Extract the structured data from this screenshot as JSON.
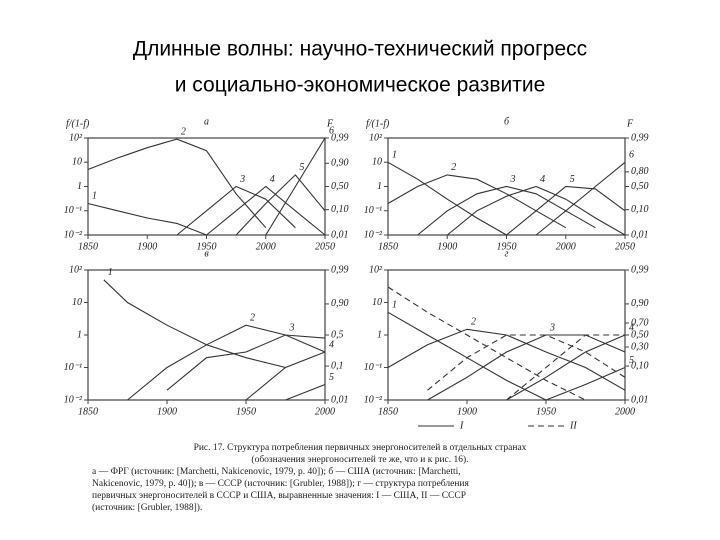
{
  "title_lines": [
    "Длинные волны: научно-технический прогресс",
    "и социально-экономическое развитие"
  ],
  "chart_data": [
    {
      "type": "line",
      "title": "а",
      "ylabel": "f/(1-f)",
      "y2label": "F",
      "log_y": true,
      "y2scale": "logit",
      "color": "#333333",
      "xlim": [
        1850,
        2050
      ],
      "xticks": [
        1850,
        1900,
        1950,
        2000,
        2050
      ],
      "ylim": [
        0.01,
        100
      ],
      "yticks": [
        {
          "value": 100,
          "label": "10²"
        },
        10,
        1,
        {
          "value": 0.1,
          "label": "10⁻¹"
        },
        {
          "value": 0.01,
          "label": "10⁻²"
        }
      ],
      "y2lim": [
        0.01,
        0.99
      ],
      "y2ticks": [
        {
          "value": 0.99,
          "label": "0,99"
        },
        {
          "value": 0.9,
          "label": "0,90"
        },
        {
          "value": 0.5,
          "label": "0,50"
        },
        {
          "value": 0.1,
          "label": "0,10"
        },
        {
          "value": 0.01,
          "label": "0,01"
        }
      ],
      "x": [
        1850,
        1875,
        1900,
        1925,
        1950,
        1975,
        2000,
        2025,
        2050
      ],
      "series": [
        {
          "name": "1",
          "values": [
            0.2,
            0.1,
            0.05,
            0.03,
            0.01,
            null,
            null,
            null,
            null
          ]
        },
        {
          "name": "2",
          "values": [
            5,
            15,
            40,
            90,
            30,
            0.5,
            0.02,
            null,
            null
          ]
        },
        {
          "name": "3",
          "values": [
            null,
            null,
            null,
            0.01,
            0.1,
            1,
            0.3,
            0.02,
            null
          ]
        },
        {
          "name": "4",
          "values": [
            null,
            null,
            null,
            null,
            0.01,
            0.1,
            1,
            0.1,
            0.01
          ]
        },
        {
          "name": "5",
          "values": [
            null,
            null,
            null,
            null,
            null,
            0.01,
            0.2,
            3,
            0.1
          ]
        },
        {
          "name": "6",
          "values": [
            null,
            null,
            null,
            null,
            null,
            null,
            0.01,
            1,
            100
          ]
        }
      ]
    },
    {
      "type": "line",
      "title": "б",
      "ylabel": "f/(1-f)",
      "y2label": "F",
      "log_y": true,
      "y2scale": "logit",
      "color": "#333333",
      "xlim": [
        1850,
        2050
      ],
      "xticks": [
        1850,
        1900,
        1950,
        2000,
        2050
      ],
      "ylim": [
        0.01,
        100
      ],
      "yticks": [
        {
          "value": 100,
          "label": "10²"
        },
        10,
        1,
        {
          "value": 0.1,
          "label": "10⁻¹"
        },
        {
          "value": 0.01,
          "label": "10⁻²"
        }
      ],
      "y2lim": [
        0.01,
        0.99
      ],
      "y2ticks": [
        {
          "value": 0.99,
          "label": "0,99"
        },
        {
          "value": 0.8,
          "label": "0,80"
        },
        {
          "value": 0.5,
          "label": "0,50"
        },
        {
          "value": 0.1,
          "label": "0,10"
        },
        {
          "value": 0.01,
          "label": "0,01"
        }
      ],
      "x": [
        1850,
        1875,
        1900,
        1925,
        1950,
        1975,
        2000,
        2025,
        2050
      ],
      "series": [
        {
          "name": "1",
          "values": [
            10,
            2,
            0.3,
            0.05,
            0.01,
            null,
            null,
            null,
            null
          ]
        },
        {
          "name": "2",
          "values": [
            0.2,
            1,
            3,
            2,
            0.5,
            0.1,
            0.02,
            null,
            null
          ]
        },
        {
          "name": "3",
          "values": [
            null,
            0.01,
            0.1,
            0.5,
            1,
            0.5,
            0.1,
            0.02,
            null
          ]
        },
        {
          "name": "4",
          "values": [
            null,
            null,
            0.01,
            0.1,
            0.4,
            1,
            0.3,
            0.05,
            0.01
          ]
        },
        {
          "name": "5",
          "values": [
            null,
            null,
            null,
            null,
            0.01,
            0.1,
            1,
            0.8,
            0.1
          ]
        },
        {
          "name": "6",
          "values": [
            null,
            null,
            null,
            null,
            null,
            0.01,
            0.1,
            1,
            10
          ]
        }
      ]
    },
    {
      "type": "line",
      "title": "в",
      "log_y": true,
      "y2scale": "logit",
      "color": "#333333",
      "xlim": [
        1850,
        2000
      ],
      "xticks": [
        1850,
        1900,
        1950,
        2000
      ],
      "ylim": [
        0.01,
        100
      ],
      "yticks": [
        {
          "value": 100,
          "label": "10²"
        },
        10,
        1,
        {
          "value": 0.1,
          "label": "10⁻¹"
        },
        {
          "value": 0.01,
          "label": "10⁻²"
        }
      ],
      "y2lim": [
        0.01,
        0.99
      ],
      "y2ticks": [
        {
          "value": 0.99,
          "label": "0,99"
        },
        {
          "value": 0.9,
          "label": "0,90"
        },
        {
          "value": 0.5,
          "label": "0,5"
        },
        {
          "value": 0.1,
          "label": "0,1"
        },
        {
          "value": 0.01,
          "label": "0,01"
        }
      ],
      "x": [
        1860,
        1875,
        1900,
        1925,
        1950,
        1975,
        2000
      ],
      "series": [
        {
          "name": "1",
          "values": [
            50,
            10,
            2,
            0.5,
            0.2,
            0.1,
            null
          ]
        },
        {
          "name": "2",
          "values": [
            null,
            0.01,
            0.1,
            0.5,
            2,
            1,
            0.3
          ]
        },
        {
          "name": "3",
          "values": [
            null,
            null,
            0.02,
            0.2,
            0.3,
            1,
            0.8
          ]
        },
        {
          "name": "4",
          "values": [
            null,
            null,
            null,
            null,
            0.01,
            0.1,
            0.3
          ]
        },
        {
          "name": "5",
          "values": [
            null,
            null,
            null,
            null,
            null,
            0.01,
            0.03
          ]
        }
      ]
    },
    {
      "type": "line",
      "title": "г",
      "log_y": true,
      "y2scale": "logit",
      "color": "#333333",
      "xlim": [
        1850,
        2000
      ],
      "xticks": [
        1850,
        1900,
        1950,
        2000
      ],
      "ylim": [
        0.01,
        100
      ],
      "yticks": [
        {
          "value": 100,
          "label": "10²"
        },
        10,
        1,
        {
          "value": 0.1,
          "label": "10⁻¹"
        },
        {
          "value": 0.01,
          "label": "10⁻²"
        }
      ],
      "y2lim": [
        0.01,
        0.99
      ],
      "y2ticks": [
        {
          "value": 0.99,
          "label": "0,99"
        },
        {
          "value": 0.9,
          "label": "0,90"
        },
        {
          "value": 0.7,
          "label": "0,70"
        },
        {
          "value": 0.5,
          "label": "0,50"
        },
        {
          "value": 0.3,
          "label": "0,30"
        },
        {
          "value": 0.1,
          "label": "0,10"
        },
        {
          "value": 0.01,
          "label": "0,01"
        }
      ],
      "x": [
        1850,
        1875,
        1900,
        1925,
        1950,
        1975,
        2000
      ],
      "series": [
        {
          "name": "1",
          "values": [
            5,
            1,
            0.2,
            0.04,
            0.01,
            null,
            null
          ]
        },
        {
          "name": "2",
          "values": [
            0.1,
            0.5,
            1.5,
            1,
            0.3,
            0.1,
            0.02
          ]
        },
        {
          "name": "3",
          "values": [
            null,
            0.01,
            0.05,
            0.3,
            1,
            1,
            0.3
          ]
        },
        {
          "name": "4",
          "values": [
            null,
            null,
            null,
            0.01,
            0.05,
            0.3,
            1
          ]
        },
        {
          "name": "5",
          "values": [
            null,
            null,
            null,
            null,
            0.01,
            0.03,
            0.1
          ]
        },
        {
          "dash": true,
          "values": [
            30,
            5,
            1,
            0.2,
            0.04,
            0.01,
            null
          ]
        },
        {
          "dash": true,
          "values": [
            null,
            0.02,
            0.2,
            1,
            1,
            0.3,
            0.05
          ]
        },
        {
          "dash": true,
          "values": [
            null,
            null,
            null,
            0.01,
            0.1,
            1,
            1
          ]
        }
      ],
      "legend": [
        {
          "label": "I",
          "dash": false
        },
        {
          "label": "II",
          "dash": true
        }
      ]
    }
  ],
  "caption_lines": [
    "Рис. 17. Структура потребления первичных энергоносителей в отдельных странах",
    "(обозначения энергоносителей те же, что и к рис. 16).",
    "а — ФРГ (источник: [Marchetti, Nakicenovic, 1979, p. 40]); б — США (источник: [Marchetti,",
    "Nakicenovic, 1979, p. 40]); в — СССР (источник: [Grubler, 1988]); г — структура потребления",
    "первичных энергоносителей в СССР и США, выравненные значения: I — США, II — СССР",
    "(источник: [Grubler, 1988])."
  ]
}
